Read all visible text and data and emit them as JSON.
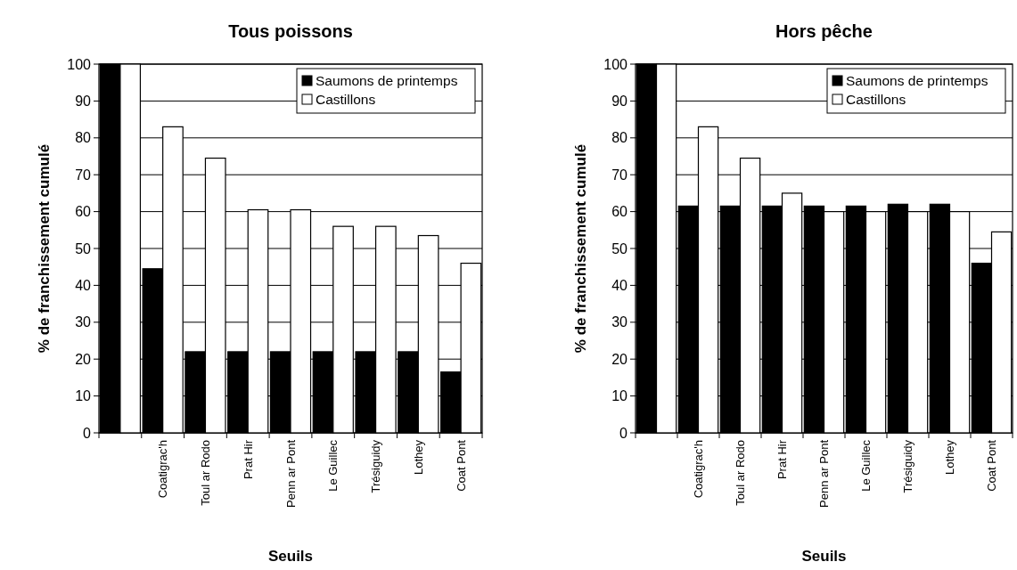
{
  "chart_data": [
    {
      "type": "bar",
      "title": "Tous poissons",
      "xlabel": "Seuils",
      "ylabel": "% de franchissement cumulé",
      "categories": [
        null,
        "Coatigrac'h",
        "Toul ar Rodo",
        "Prat Hir",
        "Penn ar Pont",
        "Le Guillec",
        "Trésiguidy",
        "Lothey",
        "Coat Pont"
      ],
      "series": [
        {
          "name": "Saumons de printemps",
          "color": "#000000",
          "values": [
            100,
            44.5,
            22,
            22,
            22,
            22,
            22,
            22,
            16.5
          ]
        },
        {
          "name": "Castillons",
          "color": "#ffffff",
          "values": [
            100,
            83,
            74.5,
            60.5,
            60.5,
            56,
            56,
            53.5,
            46
          ]
        }
      ],
      "ylim": [
        0,
        100
      ],
      "yticks": [
        0,
        10,
        20,
        30,
        40,
        50,
        60,
        70,
        80,
        90,
        100
      ],
      "grid": "y",
      "legend": "top right"
    },
    {
      "type": "bar",
      "title": "Hors pêche",
      "xlabel": "Seuils",
      "ylabel": "% de franchissement cumulé",
      "categories": [
        null,
        "Coatigrac'h",
        "Toul ar Rodo",
        "Prat Hir",
        "Penn ar Pont",
        "Le Guillec",
        "Trésiguidy",
        "Lothey",
        "Coat Pont"
      ],
      "series": [
        {
          "name": "Saumons de printemps",
          "color": "#000000",
          "values": [
            100,
            61.5,
            61.5,
            61.5,
            61.5,
            61.5,
            62,
            62,
            46
          ]
        },
        {
          "name": "Castillons",
          "color": "#ffffff",
          "values": [
            100,
            83,
            74.5,
            65,
            60,
            60,
            60,
            60,
            54.5
          ]
        }
      ],
      "ylim": [
        0,
        100
      ],
      "yticks": [
        0,
        10,
        20,
        30,
        40,
        50,
        60,
        70,
        80,
        90,
        100
      ],
      "grid": "y",
      "legend": "top right"
    }
  ]
}
